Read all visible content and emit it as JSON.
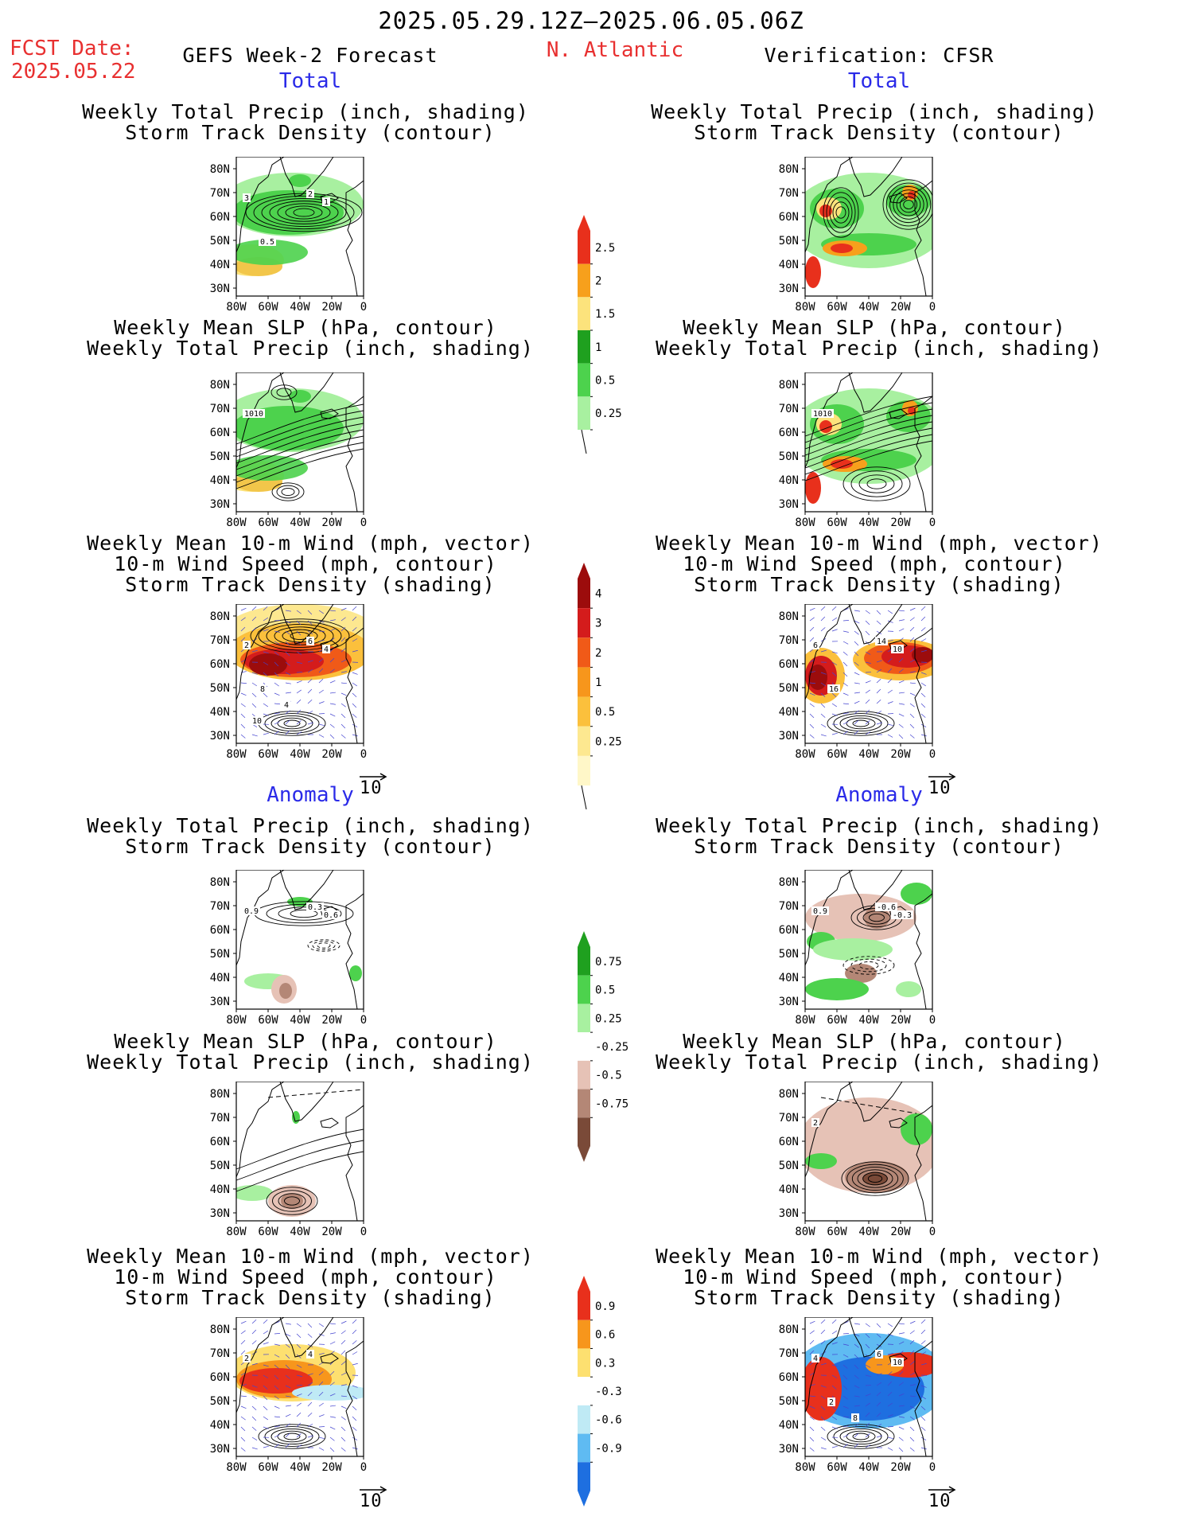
{
  "header": {
    "date_range": "2025.05.29.12Z–2025.06.05.06Z",
    "fcst_label": "FCST Date:",
    "fcst_date": "2025.05.22",
    "left_title": "GEFS Week-2 Forecast",
    "region": "N. Atlantic",
    "right_title": "Verification: CFSR"
  },
  "sections": {
    "total": "Total",
    "anomaly": "Anomaly"
  },
  "panel_titles": {
    "precip_storm": [
      "Weekly Total Precip (inch, shading)",
      "Storm Track Density (contour)"
    ],
    "slp_precip": [
      "Weekly Mean SLP (hPa, contour)",
      "Weekly Total Precip (inch, shading)"
    ],
    "wind_storm": [
      "Weekly Mean 10-m Wind (mph, vector)",
      "10-m Wind Speed (mph, contour)",
      "Storm Track Density (shading)"
    ]
  },
  "axes": {
    "lat_ticks": [
      "80N",
      "70N",
      "60N",
      "50N",
      "40N",
      "30N"
    ],
    "lon_ticks": [
      "80W",
      "60W",
      "40W",
      "20W",
      "0"
    ]
  },
  "vector_ref": "10",
  "colorbars": {
    "precip_total": {
      "labels": [
        "2.5",
        "2",
        "1.5",
        "1",
        "0.5",
        "0.25"
      ],
      "colors": [
        "#e8301c",
        "#f7a01c",
        "#fce37c",
        "#1fa01f",
        "#4dd24d",
        "#a8f0a0"
      ]
    },
    "storm_total": {
      "labels": [
        "4",
        "3",
        "2",
        "1",
        "0.5",
        "0.25"
      ],
      "colors": [
        "#9c0c0c",
        "#d41c1c",
        "#f05a18",
        "#f7961c",
        "#fbc03c",
        "#fde890",
        "#fff7c8"
      ]
    },
    "precip_anom": {
      "labels": [
        "0.75",
        "0.5",
        "0.25",
        "-0.25",
        "-0.5",
        "-0.75"
      ],
      "colors": [
        "#1fa01f",
        "#4dd24d",
        "#a8f0a0",
        "#ffffff",
        "#e6c2b6",
        "#b48776",
        "#7a4a38"
      ]
    },
    "storm_anom": {
      "labels": [
        "0.9",
        "0.6",
        "0.3",
        "-0.3",
        "-0.6",
        "-0.9"
      ],
      "colors": [
        "#e8301c",
        "#f7961c",
        "#fde070",
        "#ffffff",
        "#bfeaf5",
        "#5fbbf2",
        "#1e6fe0"
      ]
    }
  },
  "contour_labels": {
    "fcst_total_1": [
      "3",
      "2",
      "1",
      "0.5"
    ],
    "fcst_total_2": [
      "1010"
    ],
    "fcst_total_3": [
      "2",
      "6",
      "4",
      "8",
      "4",
      "10"
    ],
    "verif_total_2": [
      "1010"
    ],
    "verif_total_3": [
      "6",
      "14",
      "10",
      "16"
    ],
    "fcst_anom_1": [
      "0.9",
      "0.3",
      "0.6"
    ],
    "verif_anom_1": [
      "0.9",
      "-0.6",
      "-0.3"
    ],
    "verif_anom_2": [
      "2"
    ],
    "fcst_anom_3": [
      "2",
      "4"
    ],
    "verif_anom_3": [
      "4",
      "6",
      "10",
      "2",
      "8"
    ]
  }
}
